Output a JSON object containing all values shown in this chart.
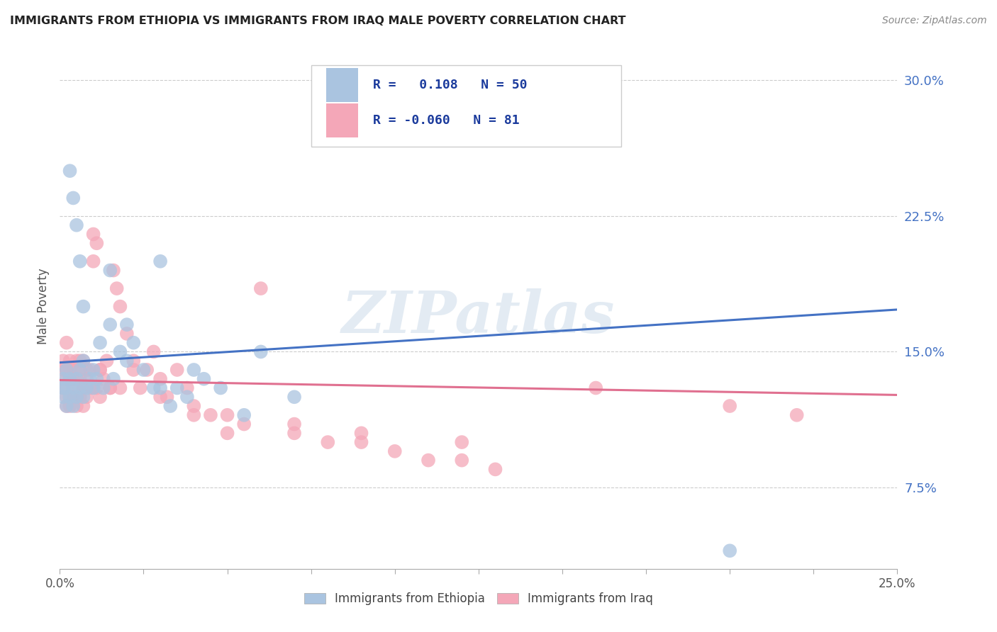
{
  "title": "IMMIGRANTS FROM ETHIOPIA VS IMMIGRANTS FROM IRAQ MALE POVERTY CORRELATION CHART",
  "source": "Source: ZipAtlas.com",
  "ylabel": "Male Poverty",
  "yticks": [
    0.075,
    0.15,
    0.225,
    0.3
  ],
  "ytick_labels": [
    "7.5%",
    "15.0%",
    "22.5%",
    "30.0%"
  ],
  "xlim": [
    0.0,
    0.25
  ],
  "ylim": [
    0.03,
    0.32
  ],
  "ethiopia_color": "#aac4e0",
  "iraq_color": "#f4a7b8",
  "ethiopia_line_color": "#4472c4",
  "iraq_line_color": "#e07090",
  "ethiopia_R": 0.108,
  "ethiopia_N": 50,
  "iraq_R": -0.06,
  "iraq_N": 81,
  "legend_label_ethiopia": "Immigrants from Ethiopia",
  "legend_label_iraq": "Immigrants from Iraq",
  "watermark": "ZIPatlas",
  "ethiopia_x": [
    0.001,
    0.001,
    0.001,
    0.002,
    0.002,
    0.002,
    0.003,
    0.003,
    0.004,
    0.004,
    0.005,
    0.005,
    0.006,
    0.006,
    0.007,
    0.007,
    0.008,
    0.009,
    0.01,
    0.01,
    0.011,
    0.012,
    0.013,
    0.015,
    0.016,
    0.018,
    0.02,
    0.022,
    0.025,
    0.028,
    0.03,
    0.033,
    0.035,
    0.038,
    0.04,
    0.043,
    0.048,
    0.055,
    0.06,
    0.07,
    0.003,
    0.004,
    0.005,
    0.006,
    0.007,
    0.015,
    0.02,
    0.03,
    0.16,
    0.2
  ],
  "ethiopia_y": [
    0.135,
    0.125,
    0.13,
    0.14,
    0.13,
    0.12,
    0.135,
    0.125,
    0.13,
    0.12,
    0.135,
    0.125,
    0.13,
    0.14,
    0.125,
    0.145,
    0.13,
    0.135,
    0.14,
    0.13,
    0.135,
    0.155,
    0.13,
    0.165,
    0.135,
    0.15,
    0.145,
    0.155,
    0.14,
    0.13,
    0.13,
    0.12,
    0.13,
    0.125,
    0.14,
    0.135,
    0.13,
    0.115,
    0.15,
    0.125,
    0.25,
    0.235,
    0.22,
    0.2,
    0.175,
    0.195,
    0.165,
    0.2,
    0.295,
    0.04
  ],
  "iraq_x": [
    0.001,
    0.001,
    0.001,
    0.002,
    0.002,
    0.002,
    0.002,
    0.003,
    0.003,
    0.003,
    0.003,
    0.004,
    0.004,
    0.004,
    0.005,
    0.005,
    0.005,
    0.006,
    0.006,
    0.006,
    0.007,
    0.007,
    0.007,
    0.008,
    0.008,
    0.009,
    0.009,
    0.01,
    0.01,
    0.011,
    0.011,
    0.012,
    0.012,
    0.013,
    0.014,
    0.015,
    0.016,
    0.017,
    0.018,
    0.02,
    0.022,
    0.024,
    0.026,
    0.028,
    0.03,
    0.032,
    0.035,
    0.038,
    0.04,
    0.045,
    0.05,
    0.055,
    0.06,
    0.07,
    0.08,
    0.09,
    0.1,
    0.11,
    0.12,
    0.13,
    0.002,
    0.003,
    0.004,
    0.005,
    0.006,
    0.007,
    0.008,
    0.01,
    0.012,
    0.015,
    0.018,
    0.022,
    0.03,
    0.04,
    0.05,
    0.07,
    0.09,
    0.12,
    0.16,
    0.2,
    0.22
  ],
  "iraq_y": [
    0.14,
    0.13,
    0.145,
    0.135,
    0.125,
    0.14,
    0.12,
    0.135,
    0.125,
    0.14,
    0.12,
    0.135,
    0.125,
    0.14,
    0.13,
    0.145,
    0.12,
    0.135,
    0.125,
    0.14,
    0.13,
    0.145,
    0.12,
    0.135,
    0.125,
    0.14,
    0.13,
    0.2,
    0.215,
    0.21,
    0.13,
    0.14,
    0.125,
    0.135,
    0.145,
    0.13,
    0.195,
    0.185,
    0.175,
    0.16,
    0.145,
    0.13,
    0.14,
    0.15,
    0.135,
    0.125,
    0.14,
    0.13,
    0.12,
    0.115,
    0.115,
    0.11,
    0.185,
    0.105,
    0.1,
    0.1,
    0.095,
    0.09,
    0.09,
    0.085,
    0.155,
    0.145,
    0.135,
    0.125,
    0.145,
    0.13,
    0.14,
    0.13,
    0.14,
    0.13,
    0.13,
    0.14,
    0.125,
    0.115,
    0.105,
    0.11,
    0.105,
    0.1,
    0.13,
    0.12,
    0.115
  ]
}
